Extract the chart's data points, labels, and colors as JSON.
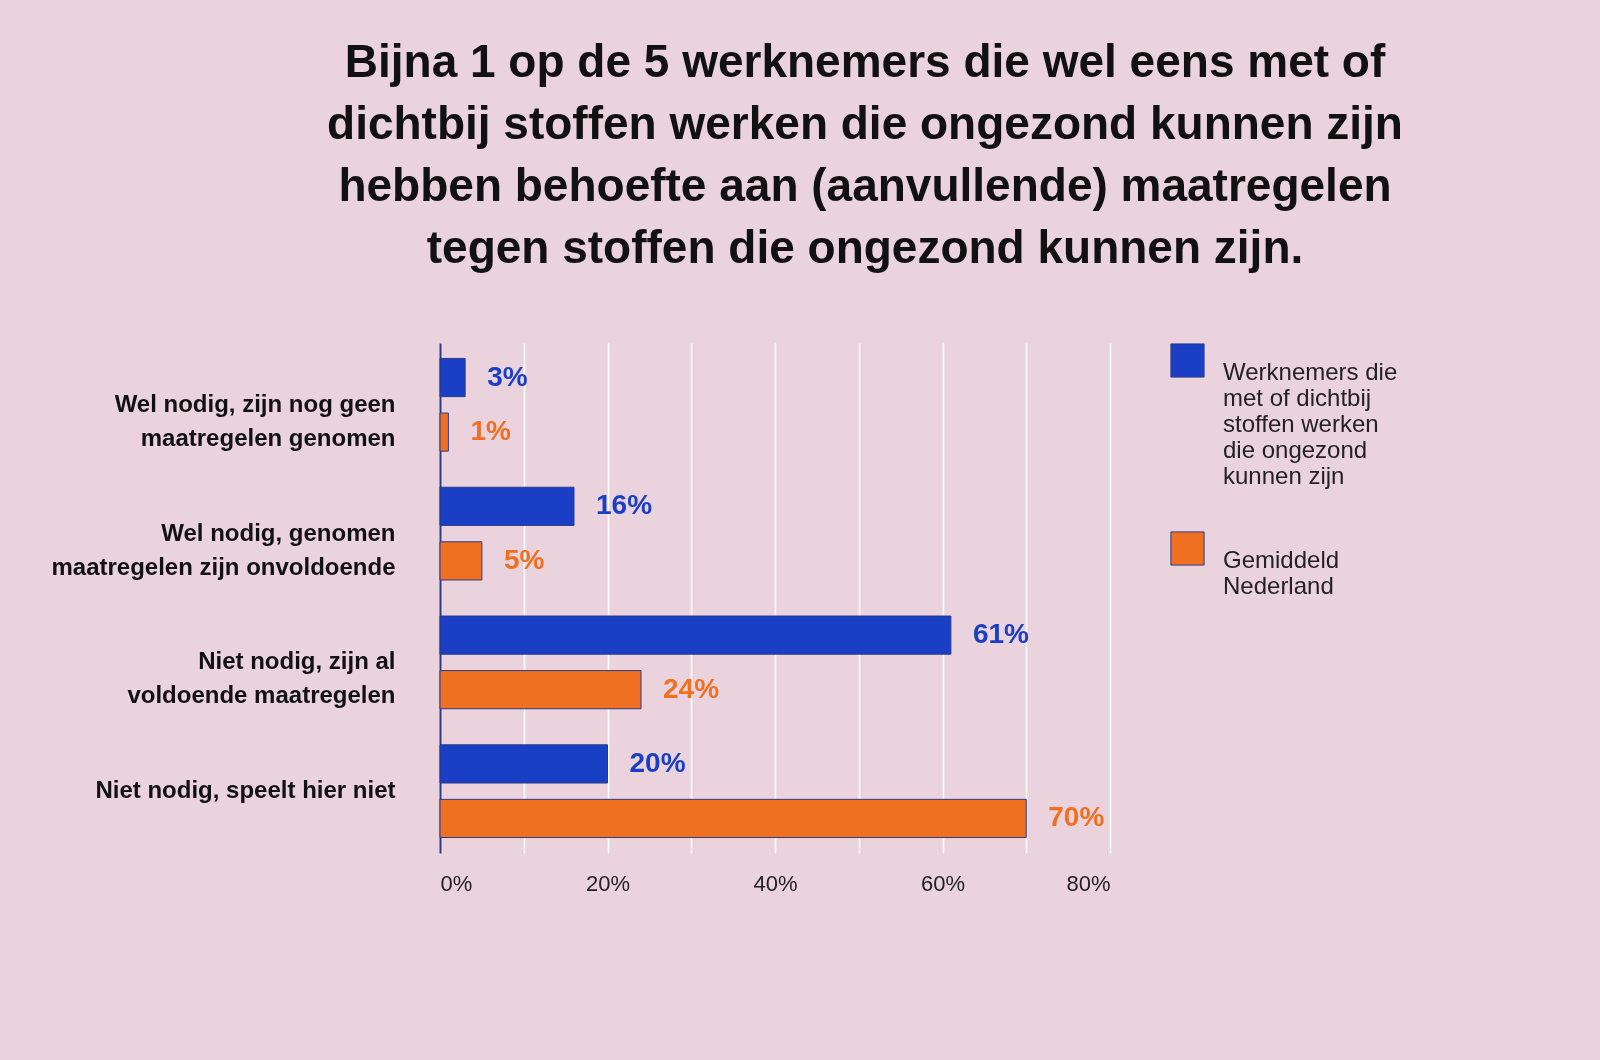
{
  "chart_data": {
    "type": "bar",
    "orientation": "horizontal",
    "title": "Bijna 1 op de 5 werknemers die wel eens met of dichtbij stoffen werken die ongezond kunnen zijn hebben behoefte aan (aanvullende) maatregelen tegen stoffen die ongezond kunnen zijn.",
    "categories": [
      "Wel nodig, zijn nog geen maatregelen genomen",
      "Wel nodig, genomen maatregelen zijn onvoldoende",
      "Niet nodig, zijn al voldoende maatregelen",
      "Niet nodig, speelt hier niet"
    ],
    "series": [
      {
        "name": "Werknemers die met of dichtbij stoffen werken die ongezond kunnen zijn",
        "color": "#1a3fc4",
        "values": [
          3,
          16,
          61,
          20
        ],
        "value_labels": [
          "3%",
          "16%",
          "61%",
          "20%"
        ]
      },
      {
        "name": "Gemiddeld Nederland",
        "color": "#f07021",
        "values": [
          1,
          5,
          24,
          70
        ],
        "value_labels": [
          "1%",
          "5%",
          "24%",
          "70%"
        ]
      }
    ],
    "xlim": [
      0,
      80
    ],
    "xticks": [
      {
        "value": 0,
        "label": "0%"
      },
      {
        "value": 10,
        "label": null
      },
      {
        "value": 20,
        "label": "20%"
      },
      {
        "value": 30,
        "label": null
      },
      {
        "value": 40,
        "label": "40%"
      },
      {
        "value": 50,
        "label": null
      },
      {
        "value": 60,
        "label": "60%"
      },
      {
        "value": 70,
        "label": null
      },
      {
        "value": 80,
        "label": "80%"
      }
    ],
    "grid": "x",
    "legend": "right"
  }
}
